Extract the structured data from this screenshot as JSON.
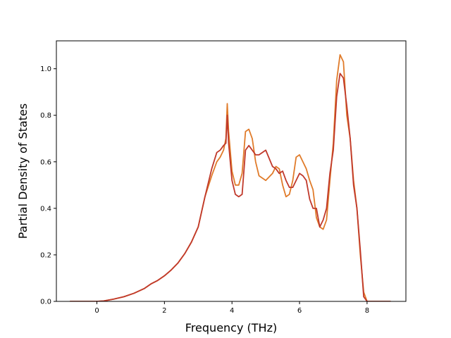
{
  "chart_data": {
    "type": "line",
    "title": "",
    "xlabel": "Frequency (THz)",
    "ylabel": "Partial Density of States",
    "xlim": [
      -1.2,
      9.15
    ],
    "ylim": [
      0.0,
      1.12
    ],
    "xticks": [
      0,
      2,
      4,
      6,
      8
    ],
    "yticks": [
      0.0,
      0.2,
      0.4,
      0.6,
      0.8,
      1.0
    ],
    "xtick_labels": [
      "0",
      "2",
      "4",
      "6",
      "8"
    ],
    "ytick_labels": [
      "0.0",
      "0.2",
      "0.4",
      "0.6",
      "0.8",
      "1.0"
    ],
    "grid": false,
    "legend": "none",
    "series": [
      {
        "color": "#e07b2a",
        "x": [
          -0.8,
          0.0,
          0.2,
          0.5,
          0.8,
          1.1,
          1.4,
          1.6,
          1.8,
          2.0,
          2.2,
          2.4,
          2.6,
          2.8,
          3.0,
          3.2,
          3.4,
          3.55,
          3.65,
          3.75,
          3.82,
          3.86,
          3.9,
          4.0,
          4.1,
          4.2,
          4.3,
          4.4,
          4.5,
          4.6,
          4.7,
          4.8,
          5.0,
          5.2,
          5.3,
          5.4,
          5.5,
          5.6,
          5.7,
          5.8,
          5.9,
          6.0,
          6.1,
          6.2,
          6.3,
          6.4,
          6.5,
          6.6,
          6.7,
          6.8,
          6.9,
          7.0,
          7.1,
          7.2,
          7.3,
          7.4,
          7.5,
          7.6,
          7.7,
          7.8,
          7.9,
          8.0,
          8.7
        ],
        "y": [
          0.0,
          0.0,
          0.002,
          0.01,
          0.02,
          0.035,
          0.055,
          0.075,
          0.09,
          0.11,
          0.135,
          0.165,
          0.205,
          0.255,
          0.32,
          0.45,
          0.54,
          0.6,
          0.62,
          0.65,
          0.7,
          0.85,
          0.73,
          0.56,
          0.5,
          0.5,
          0.55,
          0.73,
          0.74,
          0.7,
          0.6,
          0.54,
          0.52,
          0.55,
          0.58,
          0.57,
          0.5,
          0.45,
          0.46,
          0.52,
          0.62,
          0.63,
          0.6,
          0.57,
          0.52,
          0.48,
          0.36,
          0.32,
          0.31,
          0.35,
          0.52,
          0.68,
          0.95,
          1.06,
          1.03,
          0.8,
          0.7,
          0.52,
          0.4,
          0.2,
          0.04,
          0.0,
          0.0
        ]
      },
      {
        "color": "#c0392b",
        "x": [
          -0.8,
          0.0,
          0.2,
          0.5,
          0.8,
          1.1,
          1.4,
          1.6,
          1.8,
          2.0,
          2.2,
          2.4,
          2.6,
          2.8,
          3.0,
          3.2,
          3.4,
          3.55,
          3.65,
          3.75,
          3.82,
          3.86,
          3.9,
          4.0,
          4.1,
          4.2,
          4.3,
          4.4,
          4.5,
          4.6,
          4.7,
          4.8,
          5.0,
          5.2,
          5.3,
          5.4,
          5.5,
          5.6,
          5.7,
          5.8,
          5.9,
          6.0,
          6.1,
          6.2,
          6.3,
          6.4,
          6.5,
          6.6,
          6.7,
          6.8,
          6.9,
          7.0,
          7.1,
          7.2,
          7.3,
          7.4,
          7.5,
          7.6,
          7.7,
          7.8,
          7.9,
          8.0,
          8.7
        ],
        "y": [
          0.0,
          0.0,
          0.002,
          0.01,
          0.02,
          0.035,
          0.055,
          0.075,
          0.09,
          0.11,
          0.135,
          0.165,
          0.205,
          0.255,
          0.32,
          0.45,
          0.57,
          0.64,
          0.65,
          0.67,
          0.68,
          0.8,
          0.68,
          0.52,
          0.46,
          0.45,
          0.46,
          0.65,
          0.67,
          0.65,
          0.63,
          0.63,
          0.65,
          0.58,
          0.57,
          0.55,
          0.56,
          0.52,
          0.49,
          0.49,
          0.52,
          0.55,
          0.54,
          0.52,
          0.44,
          0.4,
          0.4,
          0.32,
          0.35,
          0.4,
          0.55,
          0.65,
          0.88,
          0.98,
          0.96,
          0.84,
          0.7,
          0.5,
          0.4,
          0.22,
          0.02,
          0.0,
          0.0
        ]
      }
    ]
  }
}
